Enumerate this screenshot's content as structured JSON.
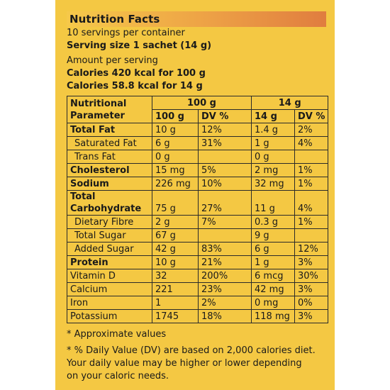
{
  "title": "Nutrition Facts",
  "servings_per_container": "10 servings per container",
  "serving_size": "Serving size 1 sachet (14 g)",
  "amount_per_serving": "Amount per serving",
  "calories_100g": "Calories 420 kcal for 100 g",
  "calories_14g": "Calories 58.8 kcal for 14 g",
  "table": {
    "param_header_line1": "Nutritional",
    "param_header_line2": "Parameter",
    "group_100g": "100 g",
    "group_14g": "14 g",
    "sub_headers": [
      "100 g",
      "DV %",
      "14 g",
      "DV %"
    ],
    "rows": [
      {
        "name": "Total Fat",
        "v100": "10 g",
        "dv100": "12%",
        "v14": "1.4 g",
        "dv14": "2%"
      },
      {
        "name": "Saturated Fat",
        "v100": "6 g",
        "dv100": "31%",
        "v14": "1 g",
        "dv14": "4%"
      },
      {
        "name": "Trans Fat",
        "v100": "0 g",
        "dv100": "",
        "v14": "0 g",
        "dv14": ""
      },
      {
        "name": "Cholesterol",
        "v100": "15 mg",
        "dv100": "5%",
        "v14": "2 mg",
        "dv14": "1%"
      },
      {
        "name": "Sodium",
        "v100": "226 mg",
        "dv100": "10%",
        "v14": "32 mg",
        "dv14": "1%"
      },
      {
        "name_line1": "Total",
        "name_line2": "Carbohydrate",
        "v100": "75 g",
        "dv100": "27%",
        "v14": "11 g",
        "dv14": "4%"
      },
      {
        "name": "Dietary Fibre",
        "v100": "2 g",
        "dv100": "7%",
        "v14": "0.3 g",
        "dv14": "1%"
      },
      {
        "name": "Total Sugar",
        "v100": "67 g",
        "dv100": "",
        "v14": "9 g",
        "dv14": ""
      },
      {
        "name": "Added Sugar",
        "v100": "42 g",
        "dv100": "83%",
        "v14": "6 g",
        "dv14": "12%"
      },
      {
        "name": "Protein",
        "v100": "10 g",
        "dv100": "21%",
        "v14": "1 g",
        "dv14": "3%"
      },
      {
        "name": "Vitamin D",
        "v100": "32",
        "dv100": "200%",
        "v14": "6 mcg",
        "dv14": "30%"
      },
      {
        "name": "Calcium",
        "v100": "221",
        "dv100": "23%",
        "v14": "42 mg",
        "dv14": "3%"
      },
      {
        "name": "Iron",
        "v100": "1",
        "dv100": "2%",
        "v14": "0 mg",
        "dv14": "0%"
      },
      {
        "name": "Potassium",
        "v100": "1745",
        "dv100": "18%",
        "v14": "118 mg",
        "dv14": "3%"
      }
    ]
  },
  "notes": {
    "approx": "* Approximate values",
    "dv_line1": "* % Daily Value (DV) are based on 2,000 calories diet.",
    "dv_line2": "Your daily value may be higher or lower depending",
    "dv_line3": "on your caloric needs."
  }
}
